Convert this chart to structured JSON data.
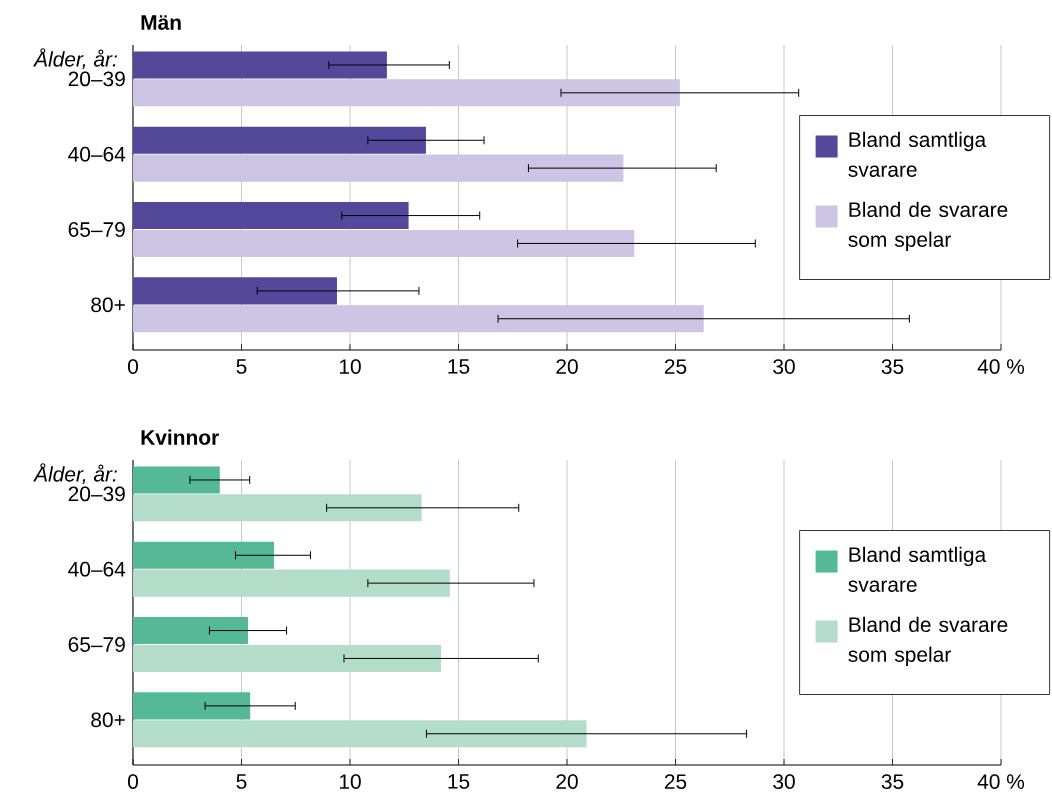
{
  "chart_data": [
    {
      "type": "bar",
      "orientation": "horizontal",
      "title": "Män",
      "ylabel": "Ålder, år:",
      "categories": [
        "20–39",
        "40–64",
        "65–79",
        "80+"
      ],
      "series": [
        {
          "name": "Bland samtliga svarare",
          "color": "#54489a",
          "values": [
            11.7,
            13.5,
            12.7,
            9.4
          ],
          "errors": [
            [
              9.0,
              14.6
            ],
            [
              10.8,
              16.2
            ],
            [
              9.6,
              16.0
            ],
            [
              5.7,
              13.2
            ]
          ]
        },
        {
          "name": "Bland de svarare som spelar",
          "color": "#cdc5e3",
          "values": [
            25.2,
            22.6,
            23.1,
            26.3
          ],
          "errors": [
            [
              19.7,
              30.7
            ],
            [
              18.2,
              26.9
            ],
            [
              17.7,
              28.7
            ],
            [
              16.8,
              35.8
            ]
          ]
        }
      ],
      "xlim": [
        0,
        40
      ],
      "xticks": [
        0,
        5,
        10,
        15,
        20,
        25,
        30,
        35,
        {
          "value": 40,
          "label": "40 %"
        }
      ],
      "grid": "x",
      "legend": "right"
    },
    {
      "type": "bar",
      "orientation": "horizontal",
      "title": "Kvinnor",
      "ylabel": "Ålder, år:",
      "categories": [
        "20–39",
        "40–64",
        "65–79",
        "80+"
      ],
      "series": [
        {
          "name": "Bland samtliga svarare",
          "color": "#55b896",
          "values": [
            4.0,
            6.5,
            5.3,
            5.4
          ],
          "errors": [
            [
              2.6,
              5.4
            ],
            [
              4.7,
              8.2
            ],
            [
              3.5,
              7.1
            ],
            [
              3.3,
              7.5
            ]
          ]
        },
        {
          "name": "Bland de svarare som spelar",
          "color": "#b3dcc9",
          "values": [
            13.3,
            14.6,
            14.2,
            20.9
          ],
          "errors": [
            [
              8.9,
              17.8
            ],
            [
              10.8,
              18.5
            ],
            [
              9.7,
              18.7
            ],
            [
              13.5,
              28.3
            ]
          ]
        }
      ],
      "xlim": [
        0,
        40
      ],
      "xticks": [
        0,
        5,
        10,
        15,
        20,
        25,
        30,
        35,
        {
          "value": 40,
          "label": "40 %"
        }
      ],
      "grid": "x",
      "legend": "right"
    }
  ]
}
